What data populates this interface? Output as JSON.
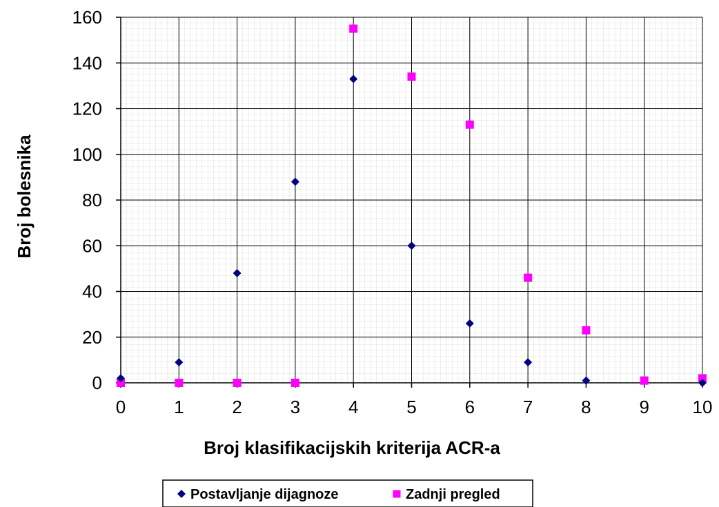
{
  "chart_data": {
    "type": "scatter",
    "title": "",
    "xlabel": "Broj klasifikacijskih kriterija ACR-a",
    "ylabel": "Broj bolesnika",
    "xlim": [
      0,
      10
    ],
    "ylim": [
      0,
      160
    ],
    "x_ticks": [
      "0",
      "1",
      "2",
      "3",
      "4",
      "5",
      "6",
      "7",
      "8",
      "9",
      "10"
    ],
    "y_ticks": [
      "0",
      "20",
      "40",
      "60",
      "80",
      "100",
      "120",
      "140",
      "160"
    ],
    "grid": true,
    "legend_position": "bottom",
    "series": [
      {
        "name": "Postavljanje dijagnoze",
        "marker": "diamond",
        "color": "#000080",
        "x": [
          0,
          1,
          2,
          3,
          4,
          5,
          6,
          7,
          8,
          10
        ],
        "y": [
          2,
          9,
          48,
          88,
          133,
          60,
          26,
          9,
          1,
          0
        ]
      },
      {
        "name": "Zadnji pregled",
        "marker": "square",
        "color": "#ff00ff",
        "x": [
          0,
          1,
          2,
          3,
          4,
          5,
          6,
          7,
          8,
          9,
          10
        ],
        "y": [
          0,
          0,
          0,
          0,
          155,
          134,
          113,
          46,
          23,
          1,
          2
        ]
      }
    ]
  }
}
